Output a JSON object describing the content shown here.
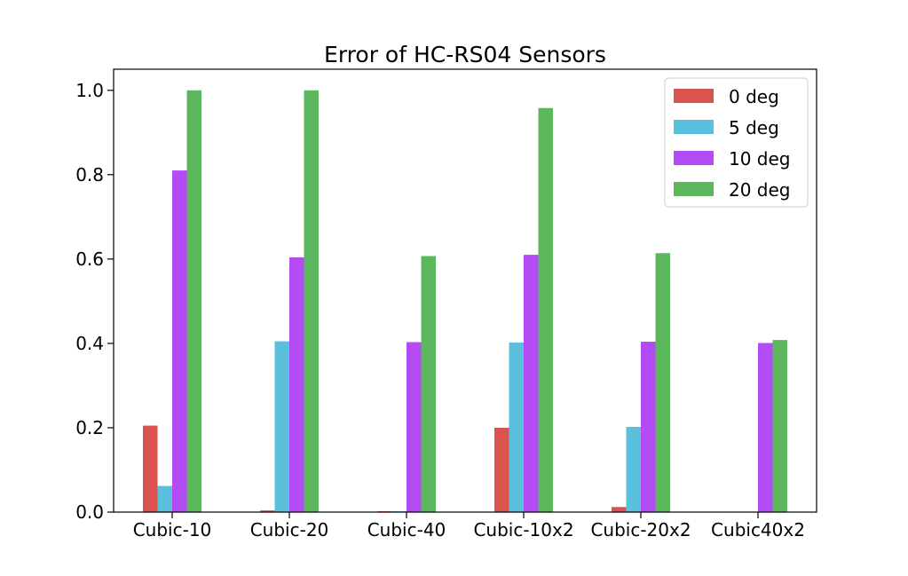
{
  "chart_data": {
    "type": "bar",
    "title": "Error of HC-RS04 Sensors",
    "xlabel": "",
    "ylabel": "",
    "ylim": [
      0,
      1.05
    ],
    "yticks": [
      0.0,
      0.2,
      0.4,
      0.6,
      0.8,
      1.0
    ],
    "ytick_labels": [
      "0.0",
      "0.2",
      "0.4",
      "0.6",
      "0.8",
      "1.0"
    ],
    "categories": [
      "Cubic-10",
      "Cubic-20",
      "Cubic-40",
      "Cubic-10x2",
      "Cubic-20x2",
      "Cubic40x2"
    ],
    "series": [
      {
        "name": "0 deg",
        "color": "#d9534f",
        "values": [
          0.205,
          0.004,
          0.002,
          0.2,
          0.012,
          0.0
        ]
      },
      {
        "name": "5 deg",
        "color": "#5bc0de",
        "values": [
          0.062,
          0.405,
          0.002,
          0.402,
          0.202,
          0.0
        ]
      },
      {
        "name": "10 deg",
        "color": "#b44cf5",
        "values": [
          0.81,
          0.604,
          0.403,
          0.61,
          0.404,
          0.401
        ]
      },
      {
        "name": "20 deg",
        "color": "#5cb85c",
        "values": [
          1.0,
          1.0,
          0.607,
          0.958,
          0.614,
          0.408
        ]
      }
    ],
    "legend_position": "top-right",
    "grid": false
  }
}
